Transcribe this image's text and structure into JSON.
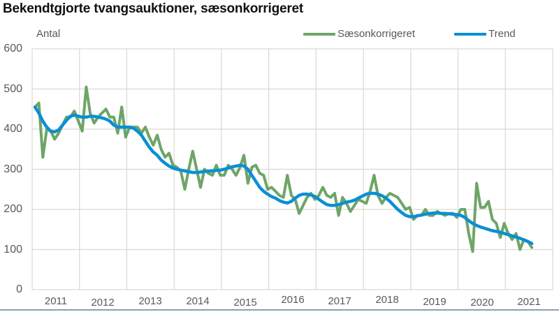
{
  "title": "Bekendtgjorte tvangsauktioner, sæsonkorrigeret",
  "colors": {
    "seasonal": "#6ea567",
    "trend": "#0a8fd4",
    "grid": "#d9d9d0",
    "text": "#595959"
  },
  "chart_data": {
    "type": "line",
    "title": "Bekendtgjorte tvangsauktioner, sæsonkorrigeret",
    "ylabel": "Antal",
    "xlabel": "",
    "ylim": [
      0,
      600
    ],
    "yticks": [
      0,
      100,
      200,
      300,
      400,
      500,
      600
    ],
    "xticks": [
      "2011",
      "2012",
      "2013",
      "2014",
      "2015",
      "2016",
      "2017",
      "2018",
      "2019",
      "2020",
      "2021"
    ],
    "grid": true,
    "legend_position": "top-right",
    "frequency": "monthly",
    "start": "2011-01",
    "series": [
      {
        "name": "Sæsonkorrigeret",
        "color": "#6ea567",
        "values": [
          455,
          465,
          330,
          400,
          395,
          375,
          390,
          410,
          430,
          430,
          445,
          420,
          395,
          505,
          440,
          415,
          430,
          440,
          450,
          430,
          430,
          390,
          455,
          380,
          405,
          405,
          405,
          390,
          405,
          380,
          360,
          385,
          350,
          330,
          340,
          310,
          305,
          295,
          250,
          300,
          345,
          300,
          255,
          300,
          290,
          285,
          310,
          285,
          285,
          310,
          300,
          285,
          305,
          335,
          265,
          305,
          310,
          290,
          285,
          250,
          255,
          245,
          235,
          230,
          285,
          235,
          225,
          190,
          210,
          230,
          240,
          225,
          235,
          255,
          235,
          230,
          240,
          185,
          230,
          215,
          195,
          210,
          225,
          220,
          215,
          245,
          285,
          235,
          215,
          230,
          240,
          235,
          230,
          215,
          200,
          205,
          175,
          185,
          185,
          200,
          185,
          185,
          195,
          190,
          185,
          190,
          190,
          180,
          200,
          200,
          140,
          95,
          265,
          205,
          205,
          220,
          175,
          165,
          130,
          165,
          140,
          125,
          140,
          100,
          125,
          120,
          105
        ]
      },
      {
        "name": "Trend",
        "color": "#0a8fd4",
        "values": [
          455,
          440,
          420,
          405,
          395,
          393,
          398,
          410,
          422,
          432,
          435,
          432,
          430,
          430,
          432,
          432,
          430,
          428,
          425,
          420,
          410,
          405,
          405,
          405,
          405,
          402,
          395,
          385,
          370,
          355,
          343,
          335,
          323,
          315,
          308,
          303,
          300,
          298,
          296,
          294,
          292,
          292,
          293,
          295,
          295,
          296,
          297,
          298,
          300,
          303,
          306,
          308,
          310,
          308,
          300,
          285,
          270,
          255,
          245,
          238,
          232,
          228,
          222,
          218,
          216,
          220,
          228,
          235,
          238,
          238,
          236,
          232,
          225,
          218,
          212,
          210,
          210,
          212,
          215,
          218,
          220,
          223,
          228,
          233,
          238,
          240,
          240,
          238,
          234,
          228,
          220,
          210,
          200,
          192,
          185,
          182,
          182,
          184,
          186,
          188,
          190,
          191,
          191,
          190,
          190,
          189,
          188,
          187,
          185,
          180,
          172,
          165,
          160,
          156,
          153,
          150,
          147,
          145,
          143,
          140,
          137,
          134,
          131,
          128,
          124,
          120,
          115
        ]
      }
    ]
  },
  "legend": [
    {
      "label": "Sæsonkorrigeret"
    },
    {
      "label": "Trend"
    }
  ],
  "axis": {
    "y_title": "Antal",
    "y_labels": [
      "600",
      "500",
      "400",
      "300",
      "200",
      "100",
      "0"
    ],
    "x_labels": [
      "2011",
      "2012",
      "2013",
      "2014",
      "2015",
      "2016",
      "2017",
      "2018",
      "2019",
      "2020",
      "2021"
    ]
  }
}
